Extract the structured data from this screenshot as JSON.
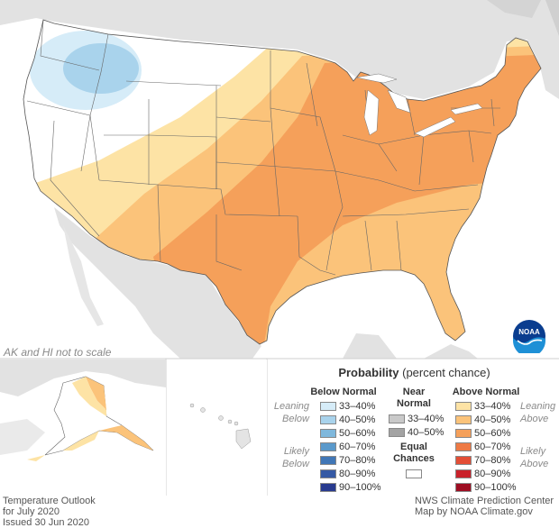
{
  "map": {
    "scale_note": "AK and HI not to scale",
    "logo_text": "NOAA"
  },
  "legend": {
    "title": "Probability",
    "subtitle": "(percent chance)",
    "below_normal": {
      "heading": "Below Normal",
      "leaning_label": "Leaning Below",
      "likely_label": "Likely Below",
      "items": [
        {
          "label": "33–40%",
          "color": "#d6ecf8"
        },
        {
          "label": "40–50%",
          "color": "#a9d3ec"
        },
        {
          "label": "50–60%",
          "color": "#7fb8dc"
        },
        {
          "label": "60–70%",
          "color": "#5a99cb"
        },
        {
          "label": "70–80%",
          "color": "#4177b6"
        },
        {
          "label": "80–90%",
          "color": "#3559a4"
        },
        {
          "label": "90–100%",
          "color": "#283a8e"
        }
      ]
    },
    "near_normal": {
      "heading_line1": "Near",
      "heading_line2": "Normal",
      "items": [
        {
          "label": "33–40%",
          "color": "#c9c9c9"
        },
        {
          "label": "40–50%",
          "color": "#a3a3a3"
        }
      ]
    },
    "equal_chances": {
      "line1": "Equal",
      "line2": "Chances",
      "color": "#ffffff"
    },
    "above_normal": {
      "heading": "Above Normal",
      "leaning_label": "Leaning Above",
      "likely_label": "Likely Above",
      "items": [
        {
          "label": "33–40%",
          "color": "#fde3a5"
        },
        {
          "label": "40–50%",
          "color": "#fbc37a"
        },
        {
          "label": "50–60%",
          "color": "#f5a05a"
        },
        {
          "label": "60–70%",
          "color": "#ee7a45"
        },
        {
          "label": "70–80%",
          "color": "#e34e36"
        },
        {
          "label": "80–90%",
          "color": "#c9212a"
        },
        {
          "label": "90–100%",
          "color": "#9d0d22"
        }
      ]
    }
  },
  "footer": {
    "left_line1": "Temperature Outlook",
    "left_line2": "for July 2020",
    "left_line3": "Issued 30 Jun 2020",
    "right_line1": "NWS Climate Prediction Center",
    "right_line2": "Map by NOAA Climate.gov"
  }
}
